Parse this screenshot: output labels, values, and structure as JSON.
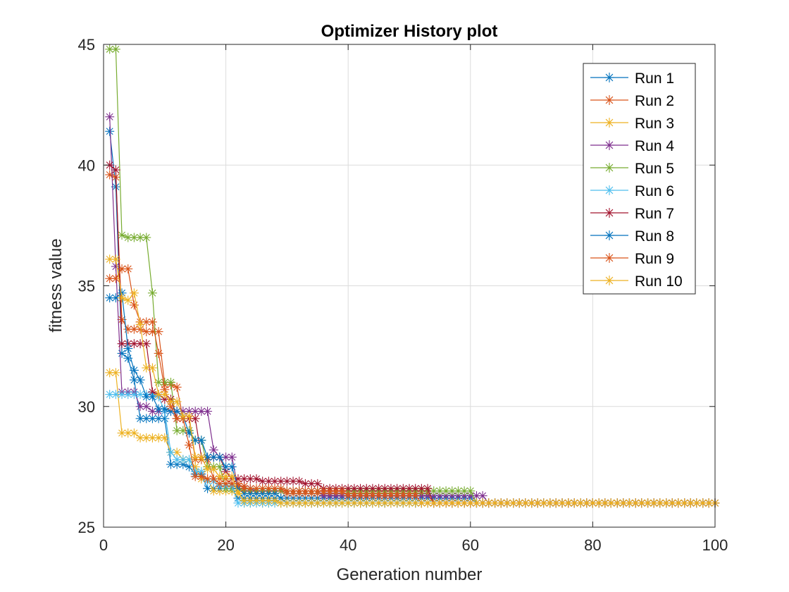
{
  "chart_data": {
    "type": "line",
    "title": "Optimizer History plot",
    "xlabel": "Generation number",
    "ylabel": "fitness value",
    "xlim": [
      0,
      100
    ],
    "ylim": [
      25,
      45
    ],
    "xticks": [
      "0",
      "20",
      "40",
      "60",
      "80",
      "100"
    ],
    "yticks": [
      "25",
      "30",
      "35",
      "40",
      "45"
    ],
    "grid": true,
    "legend_position": "top-right",
    "marker": "asterisk",
    "series": [
      {
        "name": "Run 1",
        "color": "#0072BD",
        "points": [
          [
            1,
            41.4
          ],
          [
            2,
            39.1
          ],
          [
            3,
            32.2
          ],
          [
            4,
            32.0
          ],
          [
            5,
            31.1
          ],
          [
            6,
            29.5
          ],
          [
            10,
            29.5
          ],
          [
            11,
            27.6
          ],
          [
            14,
            27.5
          ],
          [
            15,
            27.2
          ],
          [
            17,
            26.6
          ],
          [
            22,
            26.2
          ],
          [
            60,
            26.2
          ],
          [
            61,
            26.0
          ],
          [
            100,
            26.0
          ]
        ]
      },
      {
        "name": "Run 2",
        "color": "#D95319",
        "points": [
          [
            1,
            39.6
          ],
          [
            2,
            39.5
          ],
          [
            3,
            33.6
          ],
          [
            4,
            33.2
          ],
          [
            6,
            33.2
          ],
          [
            7,
            33.1
          ],
          [
            10,
            30.9
          ],
          [
            12,
            30.8
          ],
          [
            13,
            29.5
          ],
          [
            15,
            27.8
          ],
          [
            17,
            27.8
          ],
          [
            18,
            27.0
          ],
          [
            21,
            26.7
          ],
          [
            24,
            26.5
          ],
          [
            30,
            26.4
          ],
          [
            53,
            26.4
          ],
          [
            54,
            26.0
          ],
          [
            100,
            26.0
          ]
        ]
      },
      {
        "name": "Run 3",
        "color": "#EDB120",
        "points": [
          [
            1,
            31.4
          ],
          [
            2,
            31.4
          ],
          [
            3,
            28.9
          ],
          [
            5,
            28.9
          ],
          [
            6,
            28.7
          ],
          [
            10,
            28.7
          ],
          [
            11,
            28.1
          ],
          [
            13,
            27.8
          ],
          [
            15,
            27.5
          ],
          [
            16,
            27.0
          ],
          [
            18,
            26.5
          ],
          [
            21,
            26.5
          ],
          [
            23,
            26.0
          ],
          [
            100,
            26.0
          ]
        ]
      },
      {
        "name": "Run 4",
        "color": "#7E2F8E",
        "points": [
          [
            1,
            42.0
          ],
          [
            2,
            35.8
          ],
          [
            3,
            30.6
          ],
          [
            4,
            30.6
          ],
          [
            6,
            30.0
          ],
          [
            8,
            29.8
          ],
          [
            13,
            29.8
          ],
          [
            14,
            29.8
          ],
          [
            17,
            29.8
          ],
          [
            18,
            28.2
          ],
          [
            19,
            27.9
          ],
          [
            21,
            27.9
          ],
          [
            22,
            26.6
          ],
          [
            25,
            26.5
          ],
          [
            35,
            26.5
          ],
          [
            36,
            26.3
          ],
          [
            62,
            26.3
          ],
          [
            63,
            26.0
          ],
          [
            100,
            26.0
          ]
        ]
      },
      {
        "name": "Run 5",
        "color": "#77AC30",
        "points": [
          [
            1,
            44.8
          ],
          [
            2,
            44.8
          ],
          [
            3,
            37.1
          ],
          [
            4,
            37.0
          ],
          [
            7,
            37.0
          ],
          [
            8,
            34.7
          ],
          [
            9,
            31.0
          ],
          [
            10,
            31.0
          ],
          [
            12,
            29.0
          ],
          [
            14,
            29.0
          ],
          [
            15,
            28.6
          ],
          [
            17,
            27.5
          ],
          [
            20,
            26.6
          ],
          [
            23,
            26.5
          ],
          [
            60,
            26.5
          ],
          [
            61,
            26.0
          ],
          [
            100,
            26.0
          ]
        ]
      },
      {
        "name": "Run 6",
        "color": "#4DBEEE",
        "points": [
          [
            1,
            30.5
          ],
          [
            3,
            30.5
          ],
          [
            4,
            30.5
          ],
          [
            9,
            30.4
          ],
          [
            10,
            29.8
          ],
          [
            11,
            28.1
          ],
          [
            12,
            27.8
          ],
          [
            14,
            27.8
          ],
          [
            15,
            27.3
          ],
          [
            17,
            26.9
          ],
          [
            19,
            26.7
          ],
          [
            22,
            26.0
          ],
          [
            100,
            26.0
          ]
        ]
      },
      {
        "name": "Run 7",
        "color": "#A2142F",
        "points": [
          [
            1,
            40.0
          ],
          [
            2,
            39.8
          ],
          [
            3,
            32.6
          ],
          [
            7,
            32.6
          ],
          [
            8,
            30.6
          ],
          [
            9,
            30.5
          ],
          [
            10,
            30.3
          ],
          [
            12,
            29.5
          ],
          [
            15,
            29.5
          ],
          [
            16,
            27.9
          ],
          [
            17,
            27.9
          ],
          [
            20,
            27.3
          ],
          [
            21,
            27.0
          ],
          [
            24,
            27.0
          ],
          [
            26,
            26.9
          ],
          [
            33,
            26.8
          ],
          [
            36,
            26.6
          ],
          [
            53,
            26.6
          ],
          [
            54,
            26.0
          ],
          [
            100,
            26.0
          ]
        ]
      },
      {
        "name": "Run 8",
        "color": "#0072BD",
        "points": [
          [
            1,
            34.5
          ],
          [
            2,
            34.5
          ],
          [
            3,
            34.7
          ],
          [
            4,
            32.4
          ],
          [
            5,
            31.5
          ],
          [
            6,
            31.1
          ],
          [
            7,
            30.4
          ],
          [
            9,
            29.9
          ],
          [
            11,
            29.8
          ],
          [
            13,
            29.6
          ],
          [
            14,
            28.9
          ],
          [
            15,
            28.6
          ],
          [
            17,
            27.9
          ],
          [
            20,
            27.5
          ],
          [
            22,
            26.6
          ],
          [
            23,
            26.4
          ],
          [
            29,
            26.2
          ],
          [
            30,
            26.0
          ],
          [
            100,
            26.0
          ]
        ]
      },
      {
        "name": "Run 9",
        "color": "#D95319",
        "points": [
          [
            1,
            35.3
          ],
          [
            2,
            35.3
          ],
          [
            3,
            35.7
          ],
          [
            4,
            35.7
          ],
          [
            5,
            34.2
          ],
          [
            6,
            33.5
          ],
          [
            8,
            33.5
          ],
          [
            9,
            32.2
          ],
          [
            10,
            30.7
          ],
          [
            11,
            30.0
          ],
          [
            12,
            29.5
          ],
          [
            14,
            28.4
          ],
          [
            15,
            27.1
          ],
          [
            17,
            27.0
          ],
          [
            19,
            26.8
          ],
          [
            23,
            26.6
          ],
          [
            30,
            26.5
          ],
          [
            40,
            26.3
          ],
          [
            50,
            26.3
          ],
          [
            52,
            26.0
          ],
          [
            100,
            26.0
          ]
        ]
      },
      {
        "name": "Run 10",
        "color": "#EDB120",
        "points": [
          [
            1,
            36.1
          ],
          [
            2,
            36.1
          ],
          [
            3,
            34.5
          ],
          [
            4,
            34.4
          ],
          [
            5,
            34.7
          ],
          [
            6,
            33.4
          ],
          [
            7,
            31.6
          ],
          [
            9,
            30.5
          ],
          [
            11,
            30.2
          ],
          [
            13,
            29.6
          ],
          [
            15,
            27.9
          ],
          [
            17,
            27.4
          ],
          [
            19,
            27.1
          ],
          [
            22,
            26.4
          ],
          [
            23,
            26.1
          ],
          [
            27,
            26.1
          ],
          [
            29,
            26.0
          ],
          [
            100,
            26.0
          ]
        ]
      }
    ]
  }
}
